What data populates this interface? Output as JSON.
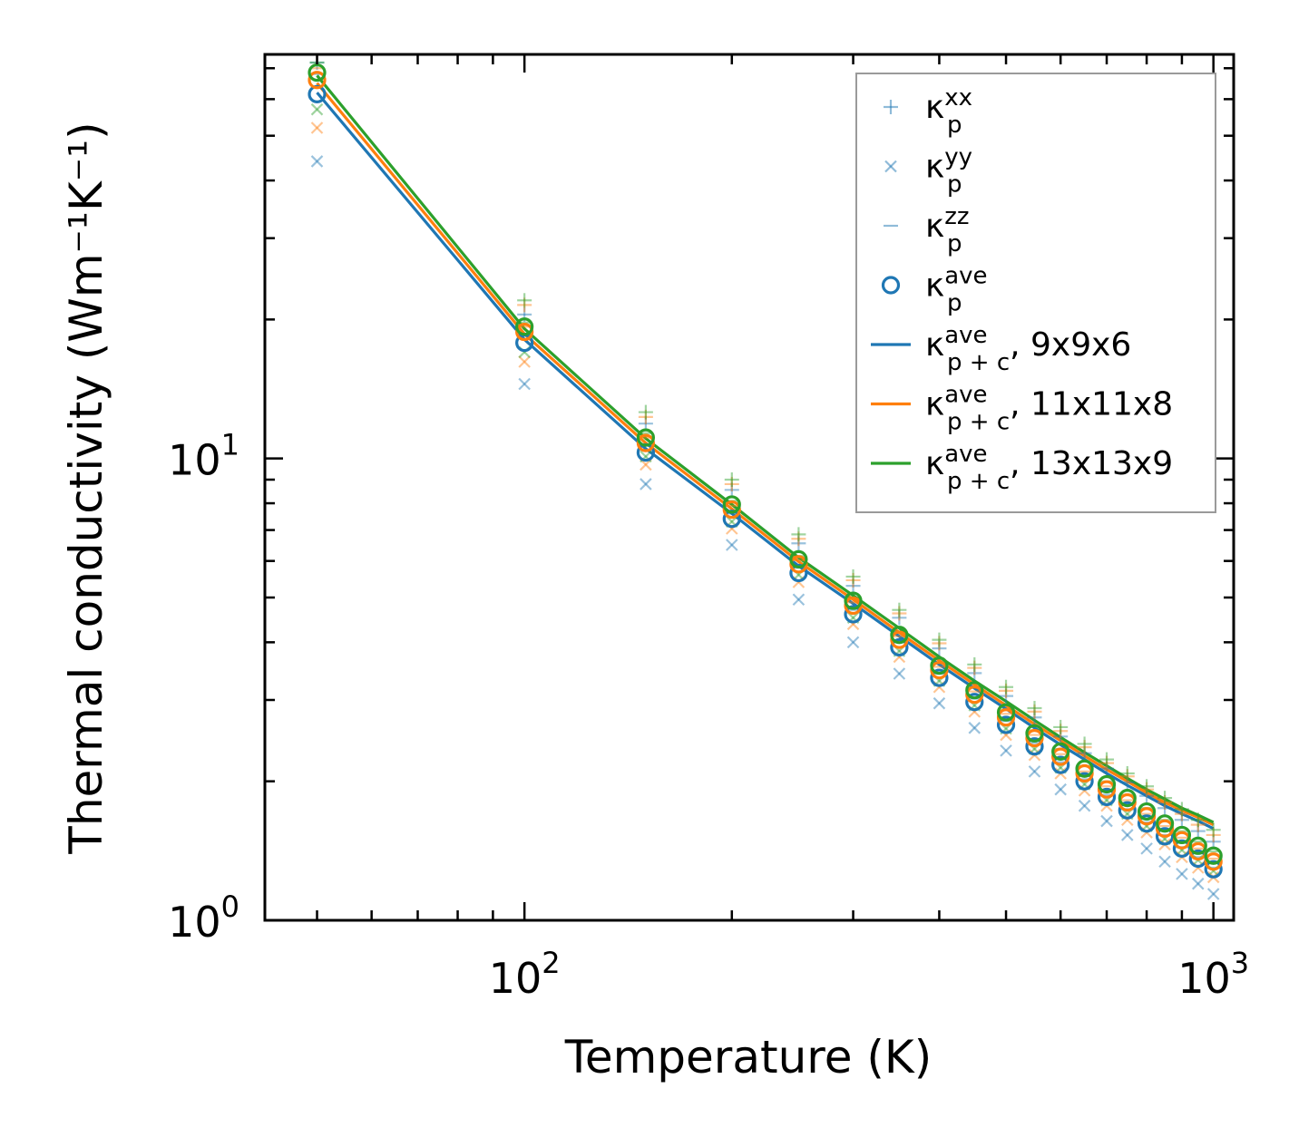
{
  "chart_data": {
    "type": "scatter",
    "title": "",
    "xlabel": "Temperature (K)",
    "ylabel": "Thermal conductivity (Wm⁻¹K⁻¹)",
    "xscale": "log",
    "yscale": "log",
    "xlim": [
      42,
      1070
    ],
    "ylim": [
      1.0,
      75
    ],
    "x_ticks": [
      {
        "base": "10",
        "exp": "2",
        "value": 100
      },
      {
        "base": "10",
        "exp": "3",
        "value": 1000
      }
    ],
    "y_ticks": [
      {
        "base": "10",
        "exp": "0",
        "value": 1
      },
      {
        "base": "10",
        "exp": "1",
        "value": 10
      }
    ],
    "legend_position": "top-right",
    "colors": {
      "blue": "#1f77b4",
      "orange": "#ff7f0e",
      "green": "#2ca02c"
    },
    "temperatures": [
      50,
      100,
      150,
      200,
      250,
      300,
      350,
      400,
      450,
      500,
      550,
      600,
      650,
      700,
      750,
      800,
      850,
      900,
      950,
      1000
    ],
    "scatter_series": [
      {
        "name": "9x9x6",
        "color": "#1f77b4",
        "ave": [
          61.5,
          17.8,
          10.3,
          7.4,
          5.65,
          4.6,
          3.9,
          3.35,
          2.97,
          2.65,
          2.38,
          2.17,
          2.0,
          1.85,
          1.73,
          1.62,
          1.52,
          1.43,
          1.36,
          1.29
        ],
        "xx": [
          72.0,
          20.5,
          11.9,
          8.55,
          6.55,
          5.3,
          4.52,
          3.88,
          3.43,
          3.06,
          2.75,
          2.5,
          2.3,
          2.13,
          1.99,
          1.86,
          1.75,
          1.65,
          1.56,
          1.48
        ],
        "yy": [
          44.0,
          14.5,
          8.8,
          6.5,
          4.95,
          4.0,
          3.42,
          2.95,
          2.61,
          2.33,
          2.1,
          1.92,
          1.77,
          1.64,
          1.53,
          1.43,
          1.34,
          1.26,
          1.2,
          1.14
        ],
        "zz": [
          68.0,
          18.5,
          10.7,
          7.6,
          5.8,
          4.7,
          4.0,
          3.42,
          3.02,
          2.7,
          2.42,
          2.2,
          2.02,
          1.87,
          1.74,
          1.63,
          1.53,
          1.44,
          1.37,
          1.3
        ]
      },
      {
        "name": "11x11x8",
        "color": "#ff7f0e",
        "ave": [
          66.0,
          18.8,
          10.8,
          7.75,
          5.9,
          4.8,
          4.05,
          3.48,
          3.08,
          2.75,
          2.48,
          2.26,
          2.08,
          1.92,
          1.8,
          1.68,
          1.58,
          1.49,
          1.41,
          1.34
        ],
        "xx": [
          75.0,
          21.5,
          12.3,
          8.8,
          6.7,
          5.45,
          4.62,
          3.98,
          3.52,
          3.14,
          2.83,
          2.57,
          2.37,
          2.19,
          2.05,
          1.92,
          1.8,
          1.7,
          1.61,
          1.53
        ],
        "yy": [
          52.0,
          16.2,
          9.7,
          7.05,
          5.4,
          4.38,
          3.72,
          3.2,
          2.83,
          2.52,
          2.28,
          2.08,
          1.91,
          1.77,
          1.65,
          1.55,
          1.46,
          1.37,
          1.3,
          1.24
        ],
        "zz": [
          70.0,
          19.3,
          11.1,
          7.9,
          6.02,
          4.88,
          4.12,
          3.54,
          3.13,
          2.8,
          2.52,
          2.29,
          2.1,
          1.95,
          1.82,
          1.7,
          1.6,
          1.51,
          1.43,
          1.36
        ]
      },
      {
        "name": "13x13x9",
        "color": "#2ca02c",
        "ave": [
          68.5,
          19.3,
          11.1,
          7.95,
          6.05,
          4.92,
          4.15,
          3.56,
          3.15,
          2.82,
          2.54,
          2.32,
          2.13,
          1.97,
          1.84,
          1.72,
          1.62,
          1.53,
          1.45,
          1.38
        ],
        "xx": [
          78.0,
          22.0,
          12.6,
          9.0,
          6.85,
          5.55,
          4.7,
          4.05,
          3.58,
          3.2,
          2.88,
          2.62,
          2.41,
          2.23,
          2.08,
          1.95,
          1.84,
          1.74,
          1.65,
          1.57
        ],
        "yy": [
          57.0,
          17.0,
          10.1,
          7.3,
          5.6,
          4.52,
          3.83,
          3.3,
          2.92,
          2.6,
          2.35,
          2.14,
          1.97,
          1.82,
          1.7,
          1.6,
          1.5,
          1.42,
          1.35,
          1.28
        ],
        "zz": [
          72.0,
          19.7,
          11.35,
          8.1,
          6.15,
          5.0,
          4.22,
          3.62,
          3.2,
          2.86,
          2.58,
          2.35,
          2.16,
          2.0,
          1.87,
          1.75,
          1.65,
          1.56,
          1.48,
          1.41
        ]
      }
    ],
    "line_series": [
      {
        "name": "9x9x6",
        "color": "#1f77b4",
        "y": [
          62.0,
          18.1,
          10.5,
          7.6,
          5.85,
          4.85,
          4.12,
          3.58,
          3.18,
          2.87,
          2.61,
          2.4,
          2.23,
          2.08,
          1.96,
          1.86,
          1.77,
          1.7,
          1.64,
          1.58
        ]
      },
      {
        "name": "11x11x8",
        "color": "#ff7f0e",
        "y": [
          65.0,
          18.6,
          10.8,
          7.78,
          5.98,
          4.95,
          4.2,
          3.65,
          3.24,
          2.92,
          2.66,
          2.45,
          2.27,
          2.12,
          2.0,
          1.89,
          1.8,
          1.73,
          1.67,
          1.61
        ]
      },
      {
        "name": "13x13x9",
        "color": "#2ca02c",
        "y": [
          67.5,
          19.1,
          11.05,
          7.95,
          6.1,
          5.05,
          4.29,
          3.72,
          3.3,
          2.98,
          2.71,
          2.49,
          2.31,
          2.16,
          2.03,
          1.92,
          1.83,
          1.75,
          1.69,
          1.63
        ]
      }
    ],
    "legend": [
      {
        "key": "xx",
        "marker": "+",
        "sym": "κ",
        "sub": "p",
        "sup": "xx",
        "suffix": "",
        "color": "#1f77b4",
        "alpha": 0.5
      },
      {
        "key": "yy",
        "marker": "x",
        "sym": "κ",
        "sub": "p",
        "sup": "yy",
        "suffix": "",
        "color": "#1f77b4",
        "alpha": 0.5
      },
      {
        "key": "zz",
        "marker": "_",
        "sym": "κ",
        "sub": "p",
        "sup": "zz",
        "suffix": "",
        "color": "#1f77b4",
        "alpha": 0.5
      },
      {
        "key": "ave",
        "marker": "o",
        "sym": "κ",
        "sub": "p",
        "sup": "ave",
        "suffix": "",
        "color": "#1f77b4",
        "alpha": 1
      },
      {
        "key": "line-9x9x6",
        "marker": "line",
        "sym": "κ",
        "sub": "p + c",
        "sup": "ave",
        "suffix": ", 9x9x6",
        "color": "#1f77b4",
        "alpha": 1
      },
      {
        "key": "line-11x11x8",
        "marker": "line",
        "sym": "κ",
        "sub": "p + c",
        "sup": "ave",
        "suffix": ", 11x11x8",
        "color": "#ff7f0e",
        "alpha": 1
      },
      {
        "key": "line-13x13x9",
        "marker": "line",
        "sym": "κ",
        "sub": "p + c",
        "sup": "ave",
        "suffix": ", 13x13x9",
        "color": "#2ca02c",
        "alpha": 1
      }
    ]
  }
}
